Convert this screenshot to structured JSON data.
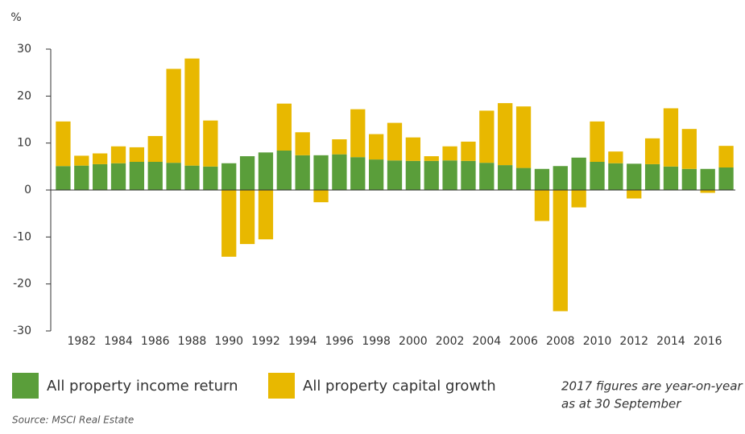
{
  "chart_data": {
    "type": "stacked_bar",
    "y_label": "%",
    "categories": [
      null,
      "1982",
      null,
      "1984",
      null,
      "1986",
      null,
      "1988",
      null,
      "1990",
      null,
      "1992",
      null,
      "1994",
      null,
      "1996",
      null,
      "1998",
      null,
      "2000",
      null,
      "2002",
      null,
      "2004",
      null,
      "2006",
      null,
      "2008",
      null,
      "2010",
      null,
      "2012",
      null,
      "2014",
      null,
      "2016",
      null
    ],
    "series": [
      {
        "name": "All property income return",
        "color": "#5a9e3a",
        "values": [
          5.1,
          5.2,
          5.5,
          5.7,
          6.0,
          6.0,
          5.8,
          5.2,
          5.0,
          5.7,
          7.2,
          8.0,
          8.4,
          7.4,
          7.4,
          7.6,
          7.0,
          6.5,
          6.3,
          6.2,
          6.2,
          6.3,
          6.2,
          5.8,
          5.3,
          4.7,
          4.5,
          5.1,
          6.9,
          6.0,
          5.7,
          5.6,
          5.5,
          5.0,
          4.5,
          4.5,
          4.8
        ]
      },
      {
        "name": "All property capital growth",
        "color": "#e8b800",
        "values": [
          9.5,
          2.1,
          2.3,
          3.6,
          3.1,
          5.5,
          20.0,
          22.8,
          9.8,
          -14.2,
          -11.5,
          -10.5,
          10.0,
          4.9,
          -2.6,
          3.2,
          10.2,
          5.4,
          8.0,
          5.0,
          1.0,
          3.0,
          4.1,
          11.1,
          13.2,
          13.1,
          -6.6,
          -25.8,
          -3.7,
          8.6,
          2.5,
          -1.8,
          5.5,
          12.4,
          8.5,
          -0.6,
          4.6
        ]
      }
    ],
    "ylim": [
      -30,
      30
    ],
    "yticks": [
      -30,
      -20,
      -10,
      0,
      10,
      20,
      30
    ],
    "annotation": [
      "2017 figures are year-on-year",
      "as at 30 September"
    ],
    "source": "Source: MSCI Real Estate"
  }
}
